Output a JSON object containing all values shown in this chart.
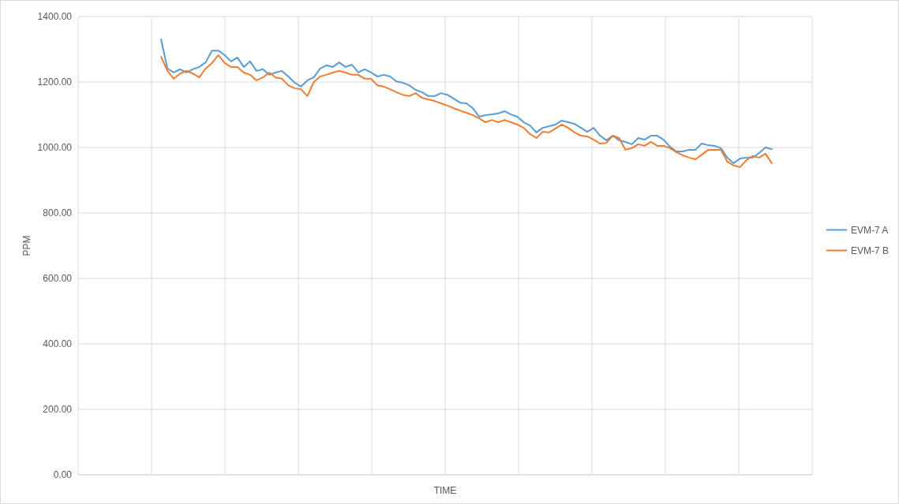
{
  "chart_data": {
    "type": "line",
    "xlabel": "TIME",
    "ylabel": "PPM",
    "categories": [
      null,
      null,
      null,
      null,
      null,
      null,
      null,
      null,
      null,
      null,
      null,
      null,
      null,
      null,
      null,
      null,
      null,
      null,
      null,
      null,
      null,
      null,
      null,
      null,
      null,
      null,
      null,
      null,
      null,
      null,
      null,
      null,
      null,
      null,
      null,
      null,
      null,
      null,
      null,
      null,
      null,
      null,
      null,
      null,
      null,
      null,
      null,
      null,
      null,
      null,
      null,
      null,
      null,
      null,
      null,
      null,
      null,
      null,
      null,
      null,
      null,
      null,
      null,
      null,
      null,
      null,
      null,
      null,
      null,
      null,
      null,
      null,
      null,
      null,
      null,
      null,
      null,
      null,
      null,
      null,
      null,
      null,
      null,
      null,
      null,
      null,
      null,
      null,
      null,
      null,
      null,
      null,
      null,
      null,
      null,
      null,
      null
    ],
    "series": [
      {
        "name": "EVM-7 A",
        "color": "#5b9bd5",
        "values": [
          1330,
          1241,
          1229,
          1239,
          1229,
          1239,
          1246,
          1260,
          1296,
          1296,
          1282,
          1263,
          1275,
          1246,
          1263,
          1234,
          1239,
          1222,
          1229,
          1234,
          1217,
          1198,
          1186,
          1205,
          1214,
          1241,
          1251,
          1246,
          1260,
          1246,
          1253,
          1229,
          1239,
          1229,
          1217,
          1222,
          1217,
          1202,
          1198,
          1190,
          1176,
          1169,
          1157,
          1157,
          1166,
          1161,
          1149,
          1137,
          1135,
          1120,
          1094,
          1099,
          1101,
          1104,
          1111,
          1101,
          1094,
          1077,
          1067,
          1046,
          1060,
          1065,
          1070,
          1082,
          1077,
          1072,
          1060,
          1048,
          1060,
          1036,
          1022,
          1036,
          1022,
          1017,
          1010,
          1029,
          1024,
          1036,
          1036,
          1024,
          1002,
          988,
          988,
          993,
          993,
          1012,
          1007,
          1005,
          998,
          969,
          952,
          966,
          969,
          969,
          983,
          1000,
          995
        ]
      },
      {
        "name": "EVM-7 B",
        "color": "#ed7d31",
        "values": [
          1277,
          1234,
          1210,
          1226,
          1234,
          1226,
          1214,
          1241,
          1258,
          1282,
          1258,
          1246,
          1246,
          1229,
          1222,
          1205,
          1214,
          1229,
          1214,
          1210,
          1190,
          1181,
          1178,
          1157,
          1200,
          1217,
          1222,
          1229,
          1234,
          1229,
          1222,
          1222,
          1210,
          1210,
          1190,
          1186,
          1178,
          1169,
          1161,
          1157,
          1166,
          1152,
          1147,
          1142,
          1135,
          1128,
          1120,
          1113,
          1106,
          1099,
          1089,
          1077,
          1084,
          1077,
          1084,
          1077,
          1070,
          1060,
          1041,
          1029,
          1048,
          1046,
          1058,
          1070,
          1060,
          1046,
          1036,
          1034,
          1024,
          1012,
          1014,
          1036,
          1029,
          993,
          998,
          1010,
          1005,
          1017,
          1005,
          1005,
          998,
          986,
          976,
          969,
          964,
          978,
          993,
          993,
          993,
          957,
          945,
          940,
          961,
          974,
          969,
          981,
          952
        ]
      }
    ],
    "ylim": [
      0,
      1400
    ],
    "yticks": [
      {
        "value": 0,
        "label": "0.00"
      },
      {
        "value": 200,
        "label": "200.00"
      },
      {
        "value": 400,
        "label": "400.00"
      },
      {
        "value": 600,
        "label": "600.00"
      },
      {
        "value": 800,
        "label": "800.00"
      },
      {
        "value": 1000,
        "label": "1000.00"
      },
      {
        "value": 1200,
        "label": "1200.00"
      },
      {
        "value": 1400,
        "label": "1400.00"
      }
    ],
    "grid": true,
    "legend": "right",
    "tick_labels": "y",
    "marker": "none",
    "line_style": "solid"
  }
}
